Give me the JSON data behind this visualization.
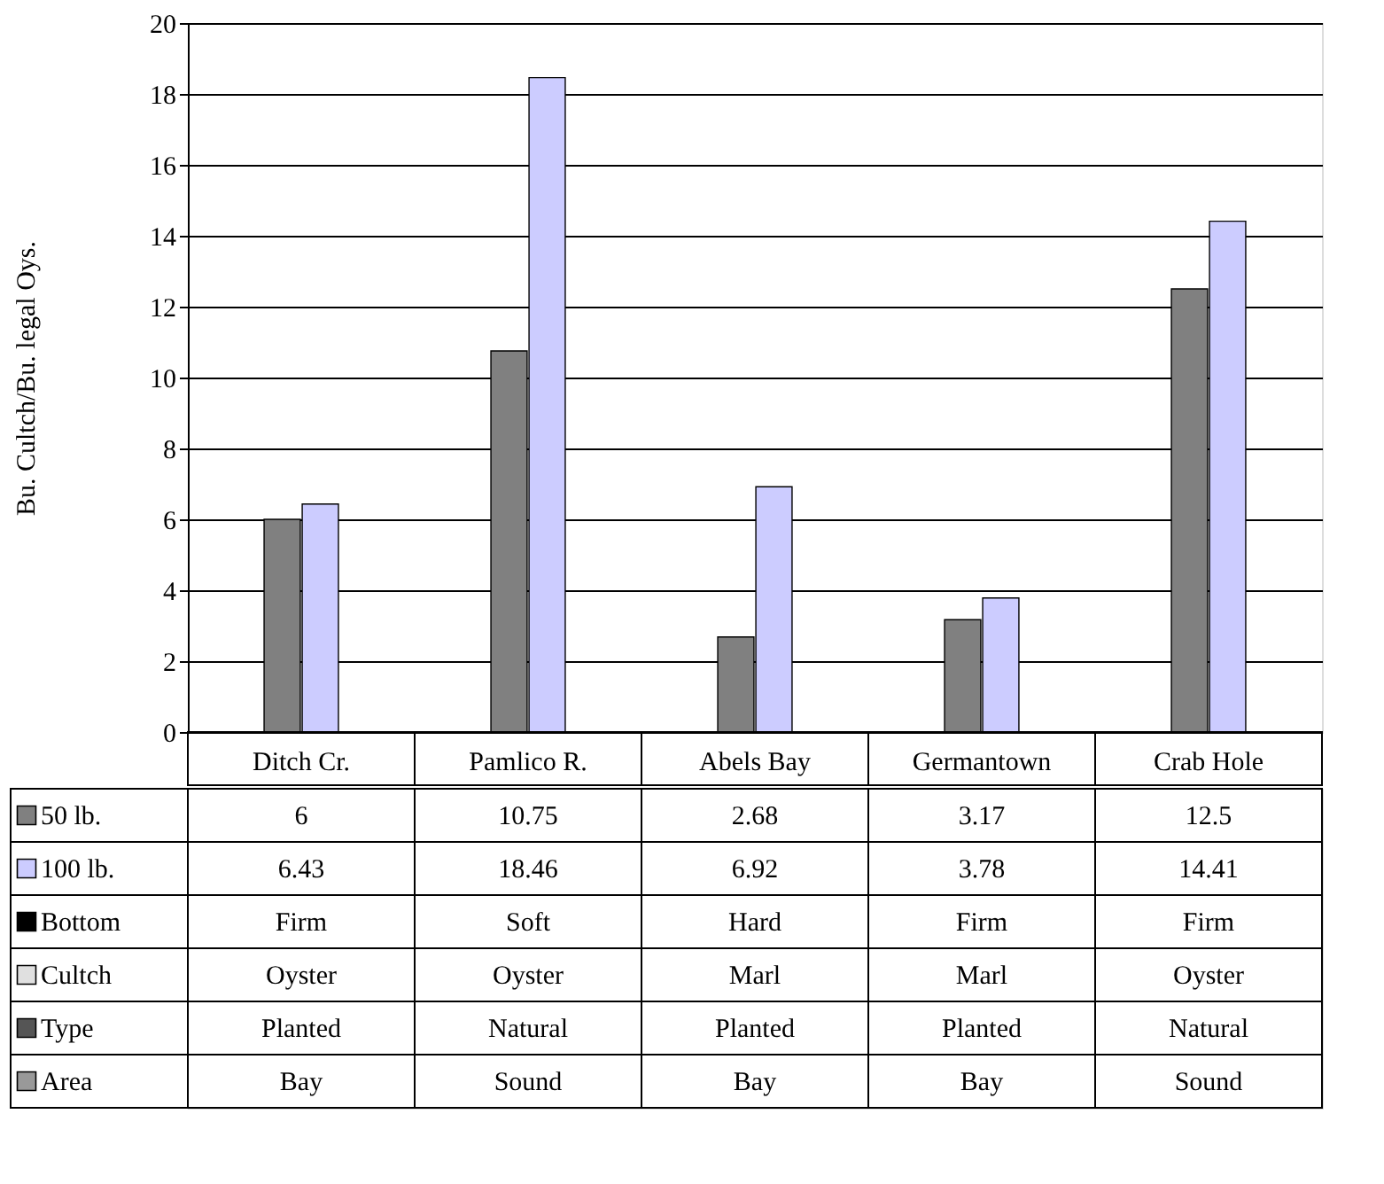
{
  "chart_data": {
    "type": "bar",
    "ylabel": "Bu. Cultch/Bu. legal Oys.",
    "categories": [
      "Ditch Cr.",
      "Pamlico R.",
      "Abels Bay",
      "Germantown",
      "Crab Hole"
    ],
    "series": [
      {
        "name": "50 lb.",
        "color": "#808080",
        "values": [
          6,
          10.75,
          2.68,
          3.17,
          12.5
        ]
      },
      {
        "name": "100 lb.",
        "color": "#ccccff",
        "values": [
          6.43,
          18.46,
          6.92,
          3.78,
          14.41
        ]
      },
      {
        "name": "Bottom",
        "color": "#000000",
        "values": [
          null,
          null,
          null,
          null,
          null
        ],
        "value_labels": [
          "Firm",
          "Soft",
          "Hard",
          "Firm",
          "Firm"
        ]
      },
      {
        "name": "Cultch",
        "color": "#e0e0e0",
        "values": [
          null,
          null,
          null,
          null,
          null
        ],
        "value_labels": [
          "Oyster",
          "Oyster",
          "Marl",
          "Marl",
          "Oyster"
        ]
      },
      {
        "name": "Type",
        "color": "#555555",
        "values": [
          null,
          null,
          null,
          null,
          null
        ],
        "value_labels": [
          "Planted",
          "Natural",
          "Planted",
          "Planted",
          "Natural"
        ]
      },
      {
        "name": "Area",
        "color": "#999999",
        "values": [
          null,
          null,
          null,
          null,
          null
        ],
        "value_labels": [
          "Bay",
          "Sound",
          "Bay",
          "Bay",
          "Sound"
        ]
      }
    ],
    "ylim": [
      0,
      20
    ],
    "yticks": [
      0,
      2,
      4,
      6,
      8,
      10,
      12,
      14,
      16,
      18,
      20
    ],
    "grid": "y",
    "legend": "bottom left",
    "data_labels": true
  }
}
